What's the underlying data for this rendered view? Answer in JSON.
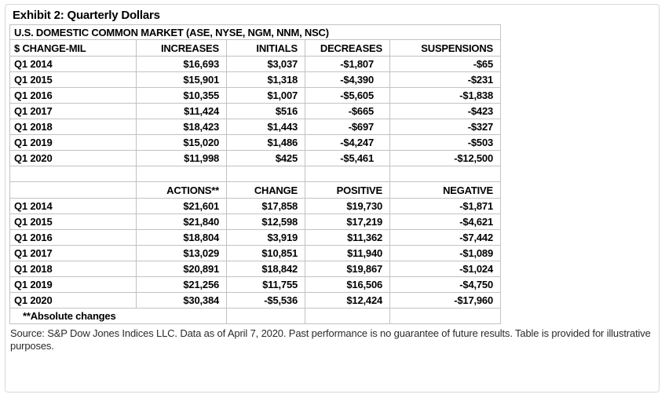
{
  "exhibit_title": "Exhibit 2: Quarterly Dollars",
  "source_note": "Source: S&P Dow Jones Indices LLC. Data as of April 7, 2020. Past performance is no guarantee of future results. Table is provided for illustrative purposes.",
  "colors": {
    "grid_border": "#c2c2c2",
    "frame_border": "#d9d9d9",
    "text": "#000000",
    "source_text": "#2b2b2b",
    "background": "#ffffff"
  },
  "chart_data": {
    "type": "table",
    "title": "U.S. DOMESTIC COMMON MARKET (ASE, NYSE, NGM, NNM, NSC)",
    "units_label": "$ CHANGE-MIL",
    "footnote": "**Absolute changes",
    "sections": [
      {
        "headers": [
          "$ CHANGE-MIL",
          "INCREASES",
          "INITIALS",
          "DECREASES",
          "SUSPENSIONS"
        ],
        "rows": [
          [
            "Q1 2014",
            "$16,693",
            "$3,037",
            "-$1,807",
            "-$65"
          ],
          [
            "Q1 2015",
            "$15,901",
            "$1,318",
            "-$4,390",
            "-$231"
          ],
          [
            "Q1 2016",
            "$10,355",
            "$1,007",
            "-$5,605",
            "-$1,838"
          ],
          [
            "Q1 2017",
            "$11,424",
            "$516",
            "-$665",
            "-$423"
          ],
          [
            "Q1 2018",
            "$18,423",
            "$1,443",
            "-$697",
            "-$327"
          ],
          [
            "Q1 2019",
            "$15,020",
            "$1,486",
            "-$4,247",
            "-$503"
          ],
          [
            "Q1 2020",
            "$11,998",
            "$425",
            "-$5,461",
            "-$12,500"
          ]
        ]
      },
      {
        "headers": [
          "",
          "ACTIONS**",
          "CHANGE",
          "POSITIVE",
          "NEGATIVE"
        ],
        "rows": [
          [
            "Q1 2014",
            "$21,601",
            "$17,858",
            "$19,730",
            "-$1,871"
          ],
          [
            "Q1 2015",
            "$21,840",
            "$12,598",
            "$17,219",
            "-$4,621"
          ],
          [
            "Q1 2016",
            "$18,804",
            "$3,919",
            "$11,362",
            "-$7,442"
          ],
          [
            "Q1 2017",
            "$13,029",
            "$10,851",
            "$11,940",
            "-$1,089"
          ],
          [
            "Q1 2018",
            "$20,891",
            "$18,842",
            "$19,867",
            "-$1,024"
          ],
          [
            "Q1 2019",
            "$21,256",
            "$11,755",
            "$16,506",
            "-$4,750"
          ],
          [
            "Q1 2020",
            "$30,384",
            "-$5,536",
            "$12,424",
            "-$17,960"
          ]
        ]
      }
    ]
  }
}
